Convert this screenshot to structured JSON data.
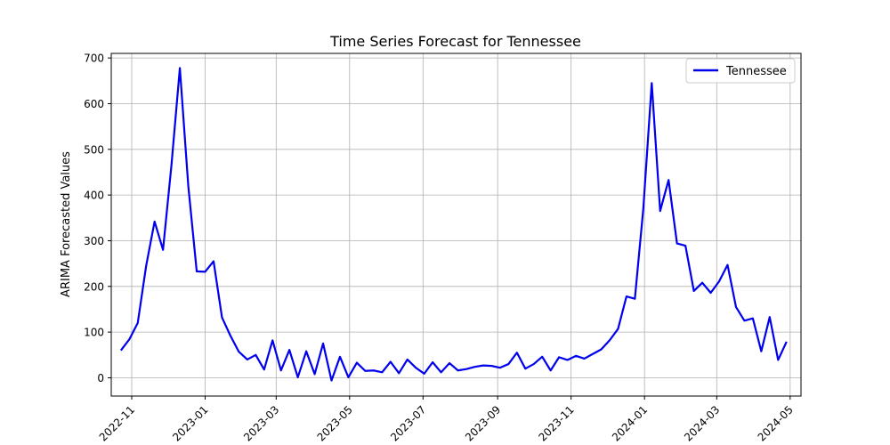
{
  "chart_data": {
    "type": "line",
    "title": "Time Series Forecast for Tennessee",
    "xlabel": "",
    "ylabel": "ARIMA Forecasted Values",
    "ylim": [
      -40,
      710
    ],
    "xlim": [
      "2022-10-15",
      "2024-05-10"
    ],
    "grid": true,
    "legend_position": "top-right",
    "yticks": [
      0,
      100,
      200,
      300,
      400,
      500,
      600,
      700
    ],
    "xticks": [
      "2022-11",
      "2023-01",
      "2023-03",
      "2023-05",
      "2023-07",
      "2023-09",
      "2023-11",
      "2024-01",
      "2024-03",
      "2024-05"
    ],
    "series": [
      {
        "name": "Tennessee",
        "color": "#0000ee",
        "points": [
          [
            "2022-10-23",
            60
          ],
          [
            "2022-10-30",
            84
          ],
          [
            "2022-11-06",
            120
          ],
          [
            "2022-11-13",
            245
          ],
          [
            "2022-11-20",
            342
          ],
          [
            "2022-11-27",
            280
          ],
          [
            "2022-12-04",
            465
          ],
          [
            "2022-12-11",
            678
          ],
          [
            "2022-12-18",
            420
          ],
          [
            "2022-12-25",
            233
          ],
          [
            "2023-01-01",
            232
          ],
          [
            "2023-01-08",
            255
          ],
          [
            "2023-01-15",
            132
          ],
          [
            "2023-01-22",
            92
          ],
          [
            "2023-01-29",
            57
          ],
          [
            "2023-02-05",
            40
          ],
          [
            "2023-02-12",
            50
          ],
          [
            "2023-02-19",
            18
          ],
          [
            "2023-02-26",
            82
          ],
          [
            "2023-03-05",
            16
          ],
          [
            "2023-03-12",
            61
          ],
          [
            "2023-03-19",
            1
          ],
          [
            "2023-03-26",
            58
          ],
          [
            "2023-04-02",
            8
          ],
          [
            "2023-04-09",
            75
          ],
          [
            "2023-04-16",
            -6
          ],
          [
            "2023-04-23",
            46
          ],
          [
            "2023-04-30",
            1
          ],
          [
            "2023-05-07",
            33
          ],
          [
            "2023-05-14",
            15
          ],
          [
            "2023-05-21",
            16
          ],
          [
            "2023-05-28",
            12
          ],
          [
            "2023-06-04",
            35
          ],
          [
            "2023-06-11",
            10
          ],
          [
            "2023-06-18",
            40
          ],
          [
            "2023-06-25",
            22
          ],
          [
            "2023-07-02",
            9
          ],
          [
            "2023-07-09",
            34
          ],
          [
            "2023-07-16",
            12
          ],
          [
            "2023-07-23",
            32
          ],
          [
            "2023-07-30",
            16
          ],
          [
            "2023-08-06",
            19
          ],
          [
            "2023-08-13",
            24
          ],
          [
            "2023-08-20",
            27
          ],
          [
            "2023-08-27",
            26
          ],
          [
            "2023-09-03",
            22
          ],
          [
            "2023-09-10",
            30
          ],
          [
            "2023-09-17",
            55
          ],
          [
            "2023-09-24",
            20
          ],
          [
            "2023-10-01",
            30
          ],
          [
            "2023-10-08",
            46
          ],
          [
            "2023-10-15",
            16
          ],
          [
            "2023-10-22",
            45
          ],
          [
            "2023-10-29",
            39
          ],
          [
            "2023-11-05",
            48
          ],
          [
            "2023-11-12",
            42
          ],
          [
            "2023-11-19",
            52
          ],
          [
            "2023-11-26",
            62
          ],
          [
            "2023-12-03",
            82
          ],
          [
            "2023-12-10",
            107
          ],
          [
            "2023-12-17",
            178
          ],
          [
            "2023-12-24",
            173
          ],
          [
            "2023-12-31",
            370
          ],
          [
            "2024-01-07",
            645
          ],
          [
            "2024-01-14",
            365
          ],
          [
            "2024-01-21",
            433
          ],
          [
            "2024-01-28",
            294
          ],
          [
            "2024-02-04",
            289
          ],
          [
            "2024-02-11",
            190
          ],
          [
            "2024-02-18",
            208
          ],
          [
            "2024-02-25",
            186
          ],
          [
            "2024-03-03",
            211
          ],
          [
            "2024-03-10",
            247
          ],
          [
            "2024-03-17",
            155
          ],
          [
            "2024-03-24",
            125
          ],
          [
            "2024-03-31",
            130
          ],
          [
            "2024-04-07",
            58
          ],
          [
            "2024-04-14",
            133
          ],
          [
            "2024-04-21",
            39
          ],
          [
            "2024-04-28",
            79
          ]
        ]
      }
    ]
  }
}
